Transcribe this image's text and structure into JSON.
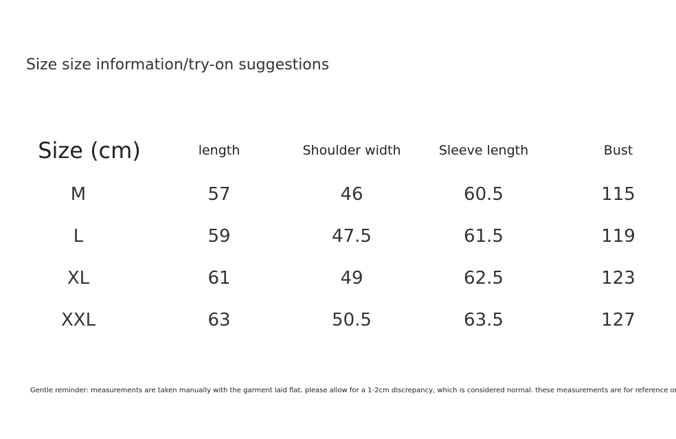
{
  "title": "Size size information/try-on suggestions",
  "table": {
    "header": [
      "Size (cm)",
      "length",
      "Shoulder width",
      "Sleeve length",
      "Bust"
    ],
    "rows": [
      [
        "M",
        57,
        46,
        60.5,
        115
      ],
      [
        "L",
        59,
        47.5,
        61.5,
        119
      ],
      [
        "XL",
        61,
        49,
        62.5,
        123
      ],
      [
        "XXL",
        63,
        50.5,
        63.5,
        127
      ]
    ]
  },
  "note": "Gentle reminder: measurements are taken manually with the garment laid flat. please allow for a 1-2cm discrepancy, which is considered normal. these measurements are for reference only"
}
